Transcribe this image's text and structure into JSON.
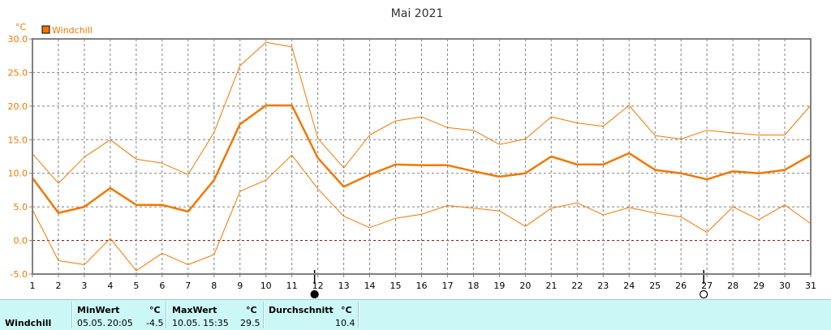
{
  "chart_data": {
    "type": "line",
    "title": "Mai 2021",
    "yunit": "°C",
    "legend": "Windchill",
    "legend_placement": "top-left",
    "ylim": [
      -5,
      30
    ],
    "yticks": [
      "30.0",
      "25.0",
      "20.0",
      "15.0",
      "10.0",
      "5.0",
      "0.0",
      "-5.0"
    ],
    "x": [
      1,
      2,
      3,
      4,
      5,
      6,
      7,
      8,
      9,
      10,
      11,
      12,
      13,
      14,
      15,
      16,
      17,
      18,
      19,
      20,
      21,
      22,
      23,
      24,
      25,
      26,
      27,
      28,
      29,
      30,
      31
    ],
    "series": [
      {
        "name": "Windchill",
        "role": "avg",
        "values": [
          9.3,
          4.1,
          5.0,
          7.8,
          5.3,
          5.3,
          4.3,
          9.0,
          17.3,
          20.1,
          20.1,
          12.3,
          8.0,
          9.8,
          11.3,
          11.2,
          11.2,
          10.3,
          9.5,
          10.0,
          12.5,
          11.3,
          11.3,
          13.0,
          10.5,
          10.0,
          9.1,
          10.3,
          10.0,
          10.5,
          12.7
        ]
      },
      {
        "role": "max",
        "values": [
          12.9,
          8.5,
          12.4,
          15.0,
          12.1,
          11.5,
          9.8,
          16.1,
          26.0,
          29.5,
          28.8,
          15.2,
          10.8,
          15.7,
          17.8,
          18.4,
          16.8,
          16.4,
          14.3,
          15.1,
          18.4,
          17.5,
          17.0,
          20.1,
          15.6,
          15.1,
          16.4,
          16.0,
          15.7,
          15.7,
          20.1
        ]
      },
      {
        "role": "min",
        "values": [
          4.6,
          -3.0,
          -3.6,
          0.3,
          -4.5,
          -1.9,
          -3.6,
          -2.1,
          7.3,
          9.0,
          12.7,
          7.7,
          3.6,
          1.9,
          3.3,
          3.9,
          5.2,
          4.8,
          4.4,
          2.1,
          4.8,
          5.6,
          3.8,
          4.9,
          4.1,
          3.5,
          1.2,
          5.0,
          3.1,
          5.3,
          2.5
        ]
      }
    ],
    "moon_phases": [
      {
        "day": 12,
        "phase": "new-moon"
      },
      {
        "day": 27,
        "phase": "full-moon"
      }
    ],
    "grid": true,
    "colors": {
      "avg": "#f07800",
      "minmax": "#f07800",
      "axis": "#808080",
      "grid": "#808080",
      "zero": "#800000",
      "text": "#333333"
    }
  },
  "footer": {
    "label": "Windchill",
    "min": {
      "header": "MinWert",
      "unit": "°C",
      "date": "05.05.",
      "time": "20:05",
      "value": "-4.5"
    },
    "max": {
      "header": "MaxWert",
      "unit": "°C",
      "date": "10.05.",
      "time": "15:35",
      "value": "29.5"
    },
    "avg": {
      "header": "Durchschnitt",
      "unit": "°C",
      "value": "10.4"
    }
  }
}
